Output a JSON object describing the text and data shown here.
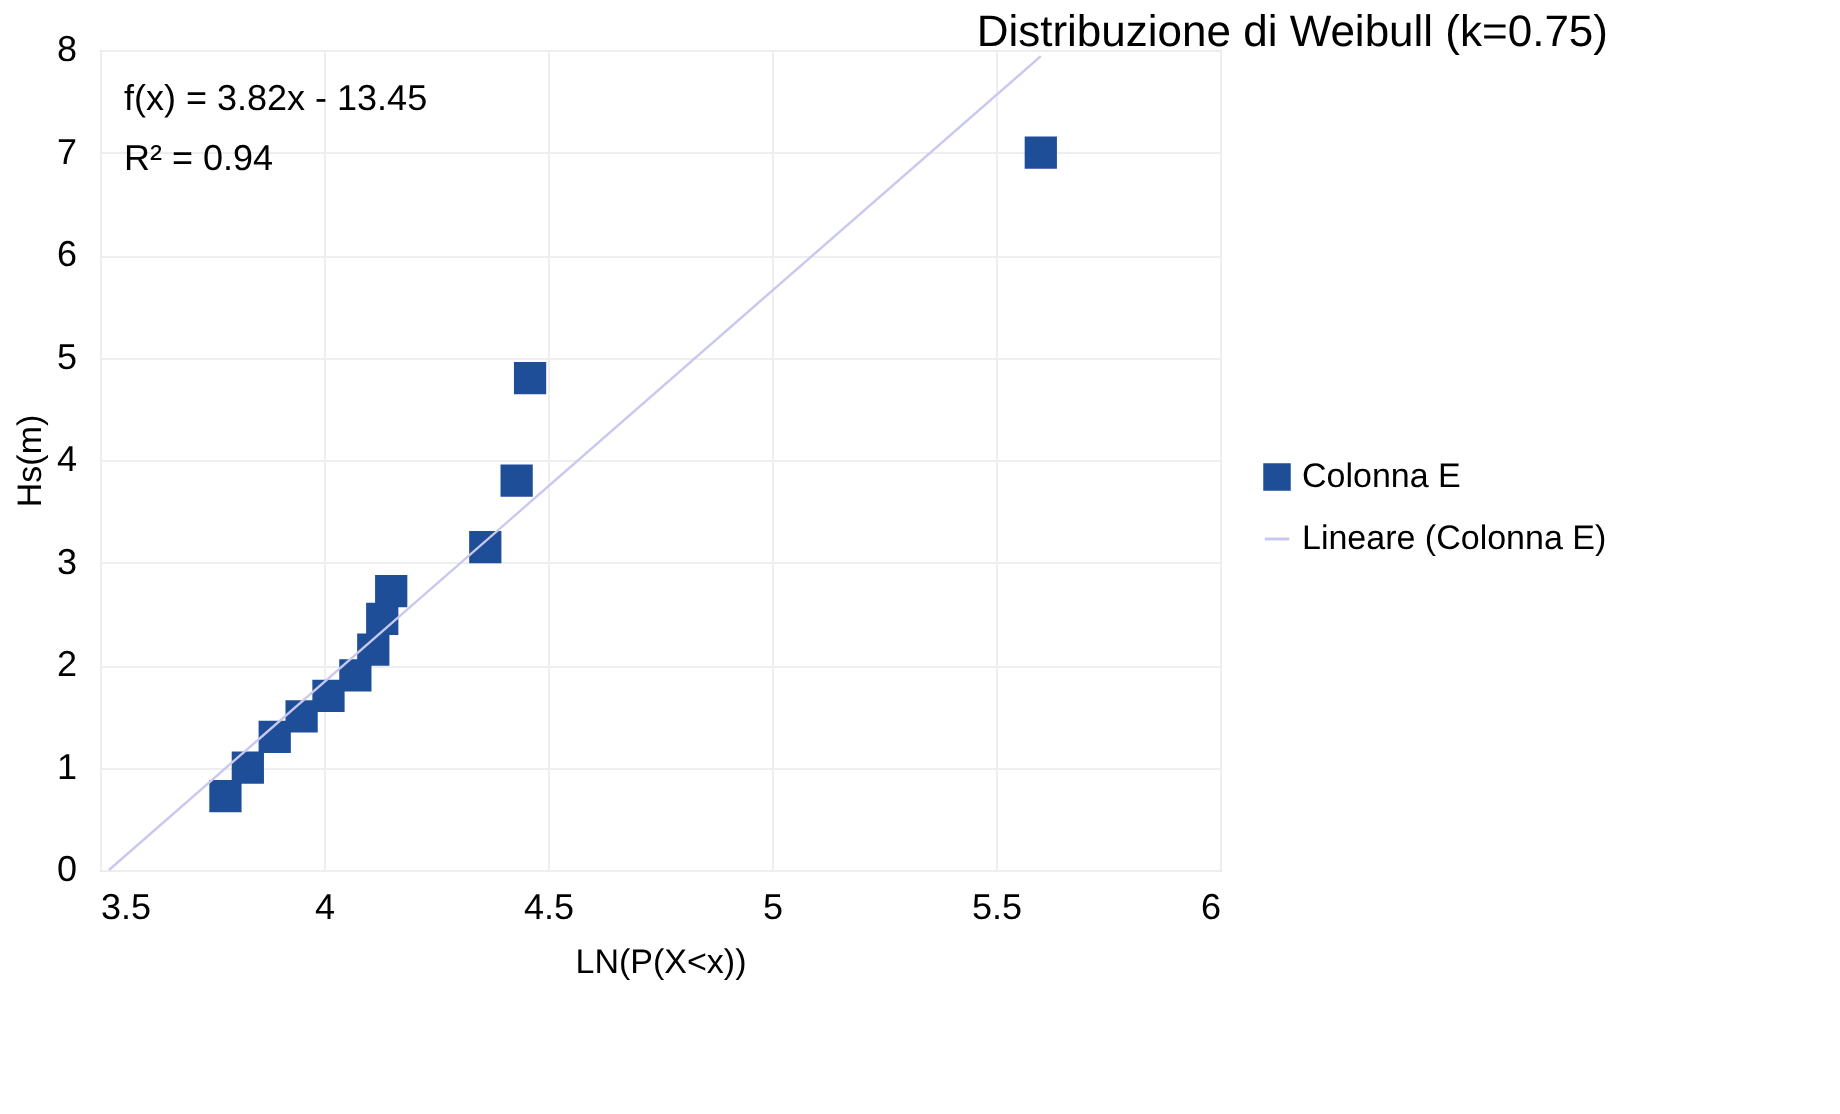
{
  "chart_data": {
    "type": "scatter",
    "title": "Distribuzione di Weibull (k=0.75)",
    "xlabel": "LN(P(X<x))",
    "ylabel": "Hs(m)",
    "xlim": [
      3.5,
      6
    ],
    "xticks": [
      3.5,
      4,
      4.5,
      5,
      5.5,
      6
    ],
    "ylim": [
      0,
      8
    ],
    "yticks": [
      0,
      1,
      2,
      3,
      4,
      5,
      6,
      7,
      8
    ],
    "grid": true,
    "legend": "right",
    "series": [
      {
        "name": "Colonna E",
        "marker": "square",
        "color": "#1f4e99",
        "x": [
          3.78,
          3.83,
          3.89,
          3.95,
          4.01,
          4.07,
          4.11,
          4.13,
          4.15,
          4.36,
          4.43,
          4.46,
          5.6
        ],
        "values": [
          0.72,
          1.0,
          1.3,
          1.5,
          1.7,
          1.9,
          2.15,
          2.45,
          2.72,
          3.15,
          3.8,
          4.8,
          7.0
        ]
      },
      {
        "name": "Lineare (Colonna E)",
        "type": "line",
        "color": "#c8c8f0",
        "x": [
          3.52,
          5.6
        ],
        "values": [
          0.0,
          7.94
        ]
      }
    ],
    "annotations": [
      "f(x) = 3.82x - 13.45",
      "R² = 0.94"
    ]
  }
}
